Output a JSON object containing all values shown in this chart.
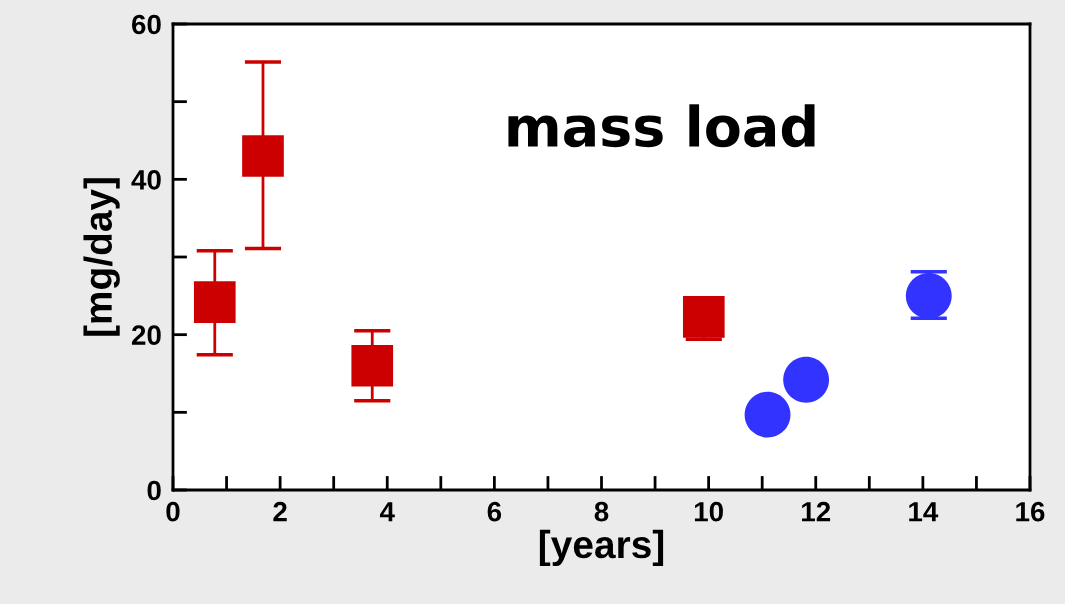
{
  "chart_data": {
    "type": "scatter",
    "title": "mass load",
    "xlabel": "[years]",
    "ylabel": "[mg/day]",
    "xlim": [
      0,
      16
    ],
    "ylim": [
      0,
      60
    ],
    "xticks": [
      0,
      {
        "value": 1,
        "label": null
      },
      2,
      {
        "value": 3,
        "label": null
      },
      4,
      {
        "value": 5,
        "label": null
      },
      6,
      {
        "value": 7,
        "label": null
      },
      8,
      {
        "value": 9,
        "label": null
      },
      10,
      {
        "value": 11,
        "label": null
      },
      12,
      {
        "value": 13,
        "label": null
      },
      14,
      {
        "value": 15,
        "label": null
      },
      16
    ],
    "yticks": [
      0,
      {
        "value": 10,
        "label": null
      },
      20,
      {
        "value": 30,
        "label": null
      },
      40,
      {
        "value": 50,
        "label": null
      },
      60
    ],
    "grid": false,
    "legend": false,
    "series": [
      {
        "color": "#cc0000",
        "marker": "square",
        "x": [
          0.78,
          1.68,
          3.72,
          9.91
        ],
        "values": [
          24.2,
          43,
          16,
          22.3
        ],
        "errors": [
          [
            17.4,
            30.8
          ],
          [
            31.1,
            55.1
          ],
          [
            11.5,
            20.5
          ],
          [
            19.4,
            24.6
          ]
        ]
      },
      {
        "color": "#3333ff",
        "marker": "circle",
        "x": [
          11.1,
          11.82,
          14.11
        ],
        "values": [
          9.7,
          14.2,
          25
        ],
        "errors": [
          null,
          null,
          [
            22.1,
            28.1
          ]
        ]
      }
    ]
  }
}
